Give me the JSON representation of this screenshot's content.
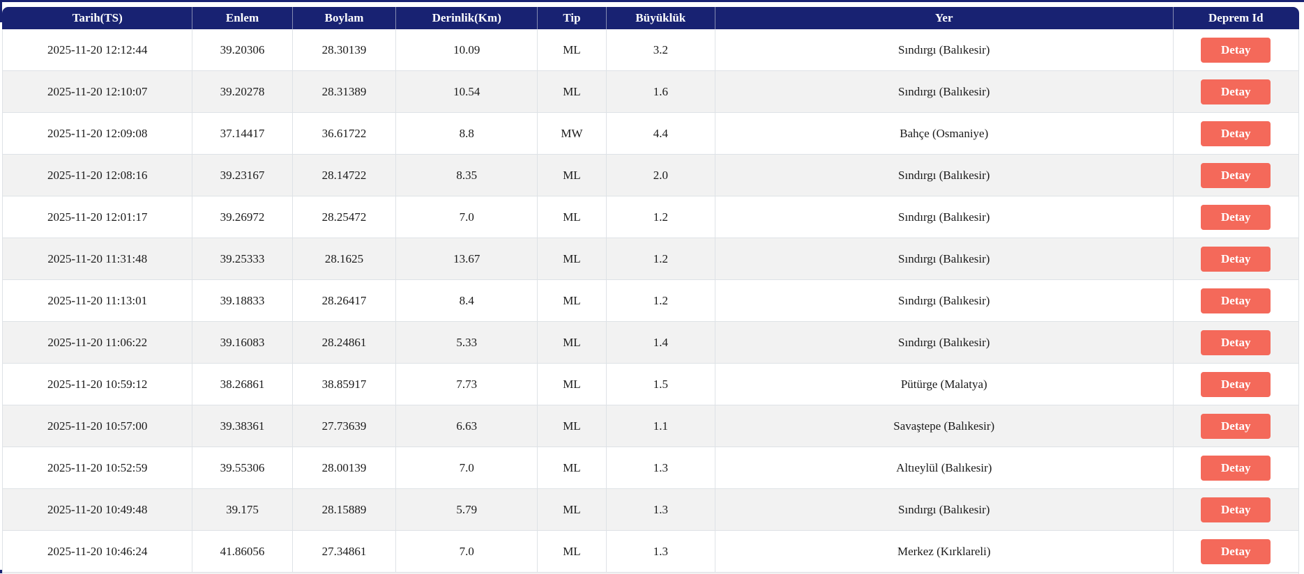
{
  "table": {
    "columns": [
      {
        "key": "tarih",
        "label": "Tarih(TS)"
      },
      {
        "key": "enlem",
        "label": "Enlem"
      },
      {
        "key": "boylam",
        "label": "Boylam"
      },
      {
        "key": "derinlik",
        "label": "Derinlik(Km)"
      },
      {
        "key": "tip",
        "label": "Tip"
      },
      {
        "key": "buyukluk",
        "label": "Büyüklük"
      },
      {
        "key": "yer",
        "label": "Yer"
      },
      {
        "key": "deprem_id",
        "label": "Deprem Id"
      }
    ],
    "action_label": "Detay",
    "rows": [
      {
        "tarih": "2025-11-20 12:12:44",
        "enlem": "39.20306",
        "boylam": "28.30139",
        "derinlik": "10.09",
        "tip": "ML",
        "buyukluk": "3.2",
        "yer": "Sındırgı (Balıkesir)"
      },
      {
        "tarih": "2025-11-20 12:10:07",
        "enlem": "39.20278",
        "boylam": "28.31389",
        "derinlik": "10.54",
        "tip": "ML",
        "buyukluk": "1.6",
        "yer": "Sındırgı (Balıkesir)"
      },
      {
        "tarih": "2025-11-20 12:09:08",
        "enlem": "37.14417",
        "boylam": "36.61722",
        "derinlik": "8.8",
        "tip": "MW",
        "buyukluk": "4.4",
        "yer": "Bahçe (Osmaniye)"
      },
      {
        "tarih": "2025-11-20 12:08:16",
        "enlem": "39.23167",
        "boylam": "28.14722",
        "derinlik": "8.35",
        "tip": "ML",
        "buyukluk": "2.0",
        "yer": "Sındırgı (Balıkesir)"
      },
      {
        "tarih": "2025-11-20 12:01:17",
        "enlem": "39.26972",
        "boylam": "28.25472",
        "derinlik": "7.0",
        "tip": "ML",
        "buyukluk": "1.2",
        "yer": "Sındırgı (Balıkesir)"
      },
      {
        "tarih": "2025-11-20 11:31:48",
        "enlem": "39.25333",
        "boylam": "28.1625",
        "derinlik": "13.67",
        "tip": "ML",
        "buyukluk": "1.2",
        "yer": "Sındırgı (Balıkesir)"
      },
      {
        "tarih": "2025-11-20 11:13:01",
        "enlem": "39.18833",
        "boylam": "28.26417",
        "derinlik": "8.4",
        "tip": "ML",
        "buyukluk": "1.2",
        "yer": "Sındırgı (Balıkesir)"
      },
      {
        "tarih": "2025-11-20 11:06:22",
        "enlem": "39.16083",
        "boylam": "28.24861",
        "derinlik": "5.33",
        "tip": "ML",
        "buyukluk": "1.4",
        "yer": "Sındırgı (Balıkesir)"
      },
      {
        "tarih": "2025-11-20 10:59:12",
        "enlem": "38.26861",
        "boylam": "38.85917",
        "derinlik": "7.73",
        "tip": "ML",
        "buyukluk": "1.5",
        "yer": "Pütürge (Malatya)"
      },
      {
        "tarih": "2025-11-20 10:57:00",
        "enlem": "39.38361",
        "boylam": "27.73639",
        "derinlik": "6.63",
        "tip": "ML",
        "buyukluk": "1.1",
        "yer": "Savaştepe (Balıkesir)"
      },
      {
        "tarih": "2025-11-20 10:52:59",
        "enlem": "39.55306",
        "boylam": "28.00139",
        "derinlik": "7.0",
        "tip": "ML",
        "buyukluk": "1.3",
        "yer": "Altıeylül (Balıkesir)"
      },
      {
        "tarih": "2025-11-20 10:49:48",
        "enlem": "39.175",
        "boylam": "28.15889",
        "derinlik": "5.79",
        "tip": "ML",
        "buyukluk": "1.3",
        "yer": "Sındırgı (Balıkesir)"
      },
      {
        "tarih": "2025-11-20 10:46:24",
        "enlem": "41.86056",
        "boylam": "27.34861",
        "derinlik": "7.0",
        "tip": "ML",
        "buyukluk": "1.3",
        "yer": "Merkez (Kırklareli)"
      }
    ]
  },
  "colors": {
    "header_bg": "#182272",
    "accent_button": "#f4695a",
    "row_alt": "#f2f2f2",
    "row_border": "#dee2e6"
  }
}
